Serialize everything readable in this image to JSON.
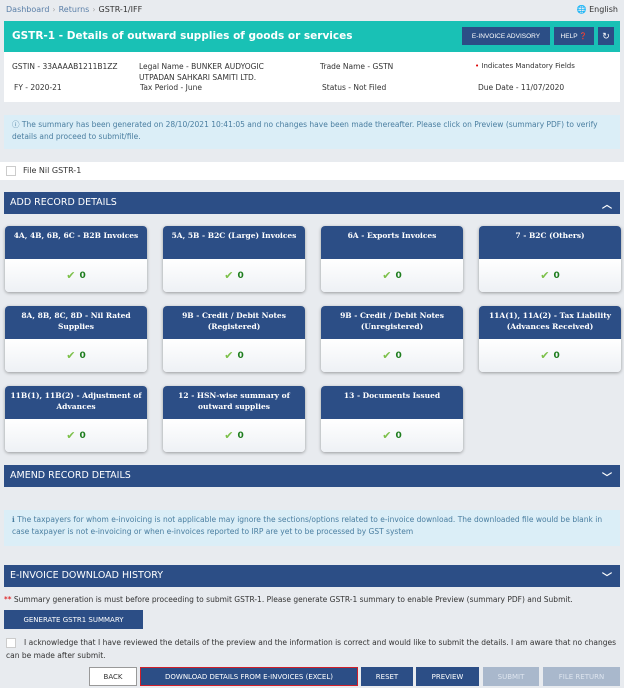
{
  "breadcrumb": [
    "Dashboard",
    "Returns",
    "GSTR-1/IFF"
  ],
  "language": "English",
  "header": {
    "title": "GSTR-1 - Details of outward supplies of goods or services",
    "advisory": "E-INVOICE ADVISORY",
    "help": "HELP",
    "refresh_icon": "refresh-icon"
  },
  "info": {
    "gstin": "GSTIN - 33AAAAB1211B1ZZ",
    "legal1": "Legal Name - BUNKER AUDYOGIC",
    "legal2": "UTPADAN SAHKARI SAMITI LTD.",
    "trade": "Trade Name - GSTN",
    "mandatory": "Indicates Mandatory Fields",
    "fy": "FY - 2020-21",
    "period": "Tax Period - June",
    "status": "Status - Not Filed",
    "due": "Due Date - 11/07/2020"
  },
  "summary_alert": "The summary has been generated on 28/10/2021 10:41:05 and no changes have been made thereafter. Please click on Preview (summary PDF) to verify details and proceed to submit/file.",
  "file_nil": "File Nil GSTR-1",
  "add_record": "ADD RECORD DETAILS",
  "tiles": [
    {
      "label": "4A, 4B, 6B, 6C - B2B Invoices",
      "count": "0"
    },
    {
      "label": "5A, 5B - B2C (Large) Invoices",
      "count": "0"
    },
    {
      "label": "6A - Exports Invoices",
      "count": "0"
    },
    {
      "label": "7 - B2C (Others)",
      "count": "0"
    },
    {
      "label": "8A, 8B, 8C, 8D - Nil Rated Supplies",
      "count": "0"
    },
    {
      "label": "9B - Credit / Debit Notes (Registered)",
      "count": "0"
    },
    {
      "label": "9B - Credit / Debit Notes (Unregistered)",
      "count": "0"
    },
    {
      "label": "11A(1), 11A(2) - Tax Liability (Advances Received)",
      "count": "0"
    },
    {
      "label": "11B(1), 11B(2) - Adjustment of Advances",
      "count": "0"
    },
    {
      "label": "12 - HSN-wise summary of outward supplies",
      "count": "0"
    },
    {
      "label": "13 - Documents Issued",
      "count": "0"
    }
  ],
  "amend_record": "AMEND RECORD DETAILS",
  "einvoice_alert": "The taxpayers for whom e-invoicing is not applicable may ignore the sections/options related to e-invoice download. The downloaded file would be blank in case taxpayer is not e-invoicing or when e-invoices reported to IRP are yet to be processed by GST system",
  "einvoice_history": "E-INVOICE DOWNLOAD HISTORY",
  "summary_note": "Summary generation is must before proceeding to submit GSTR-1. Please generate GSTR-1 summary to enable Preview (summary PDF) and Submit.",
  "generate": "GENERATE GSTR1 SUMMARY",
  "acknowledge": "I acknowledge that I have reviewed the details of the preview and the information is correct and would like to submit the details. I am aware that no changes can be made after submit.",
  "buttons": {
    "back": "BACK",
    "download": "DOWNLOAD DETAILS FROM E-INVOICES (EXCEL)",
    "reset": "RESET",
    "preview": "PREVIEW",
    "submit": "SUBMIT",
    "file_return": "FILE RETURN"
  }
}
